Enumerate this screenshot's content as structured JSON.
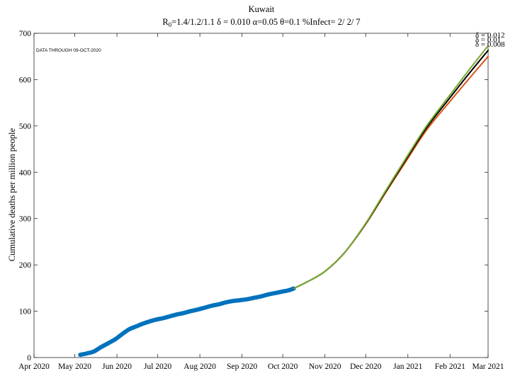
{
  "chart_data": {
    "type": "line",
    "title": "Kuwait",
    "subtitle": {
      "r0_label": "R",
      "r0_sub": "0",
      "r0_rest": "=1.4/1.2/1.1  δ = 0.010  α=0.05  θ=0.1  %Infect= 2/ 2/ 7"
    },
    "annotation": "DATA THROUGH 09-OCT-2020",
    "xlabel": "",
    "ylabel": "Cumulative deaths per million people",
    "ylim": [
      0,
      700
    ],
    "yticks": [
      0,
      100,
      200,
      300,
      400,
      500,
      600,
      700
    ],
    "xlim": [
      "2020-04-01",
      "2021-03-01"
    ],
    "xticks": [
      {
        "date": "2020-04-01",
        "label": "Apr 2020"
      },
      {
        "date": "2020-05-01",
        "label": "May 2020"
      },
      {
        "date": "2020-06-01",
        "label": "Jun 2020"
      },
      {
        "date": "2020-07-01",
        "label": "Jul 2020"
      },
      {
        "date": "2020-08-01",
        "label": "Aug 2020"
      },
      {
        "date": "2020-09-01",
        "label": "Sep 2020"
      },
      {
        "date": "2020-10-01",
        "label": "Oct 2020"
      },
      {
        "date": "2020-11-01",
        "label": "Nov 2020"
      },
      {
        "date": "2020-12-01",
        "label": "Dec 2020"
      },
      {
        "date": "2021-01-01",
        "label": "Jan 2021"
      },
      {
        "date": "2021-02-01",
        "label": "Feb 2021"
      },
      {
        "date": "2021-03-01",
        "label": "Mar 2021"
      }
    ],
    "box": true,
    "grid": false,
    "series": [
      {
        "name": "observed",
        "color": "#0072BD",
        "style": "thick",
        "x": [
          "2020-05-05",
          "2020-05-10",
          "2020-05-15",
          "2020-05-20",
          "2020-05-25",
          "2020-05-31",
          "2020-06-05",
          "2020-06-10",
          "2020-06-15",
          "2020-06-20",
          "2020-06-25",
          "2020-06-30",
          "2020-07-05",
          "2020-07-10",
          "2020-07-15",
          "2020-07-20",
          "2020-07-25",
          "2020-07-31",
          "2020-08-05",
          "2020-08-10",
          "2020-08-15",
          "2020-08-20",
          "2020-08-25",
          "2020-08-31",
          "2020-09-05",
          "2020-09-10",
          "2020-09-15",
          "2020-09-20",
          "2020-09-25",
          "2020-09-30",
          "2020-10-05",
          "2020-10-09"
        ],
        "y": [
          6,
          9,
          13,
          22,
          30,
          40,
          51,
          61,
          67,
          73,
          78,
          82,
          85,
          89,
          93,
          96,
          100,
          104,
          108,
          112,
          115,
          119,
          122,
          124,
          126,
          129,
          132,
          136,
          139,
          142,
          145,
          149
        ]
      },
      {
        "name": "δ = 0.008",
        "color": "#D95319",
        "style": "thin",
        "x": [
          "2020-10-09",
          "2020-10-20",
          "2020-11-01",
          "2020-11-15",
          "2020-12-01",
          "2020-12-15",
          "2021-01-01",
          "2021-01-15",
          "2021-02-01",
          "2021-02-15",
          "2021-03-01"
        ],
        "y": [
          149,
          165,
          186,
          225,
          288,
          353,
          430,
          492,
          553,
          602,
          650
        ]
      },
      {
        "name": "δ = 0.01",
        "color": "#000000",
        "style": "thin",
        "x": [
          "2020-10-09",
          "2020-10-20",
          "2020-11-01",
          "2020-11-15",
          "2020-12-01",
          "2020-12-15",
          "2021-01-01",
          "2021-01-15",
          "2021-02-01",
          "2021-02-15",
          "2021-03-01"
        ],
        "y": [
          149,
          165,
          186,
          225,
          289,
          355,
          434,
          497,
          561,
          613,
          663
        ]
      },
      {
        "name": "δ = 0.012",
        "color": "#77AC30",
        "style": "thin",
        "x": [
          "2020-10-09",
          "2020-10-20",
          "2020-11-01",
          "2020-11-15",
          "2020-12-01",
          "2020-12-15",
          "2021-01-01",
          "2021-01-15",
          "2021-02-01",
          "2021-02-15",
          "2021-03-01"
        ],
        "y": [
          149,
          165,
          186,
          225,
          290,
          357,
          437,
          501,
          567,
          621,
          673
        ]
      }
    ]
  }
}
